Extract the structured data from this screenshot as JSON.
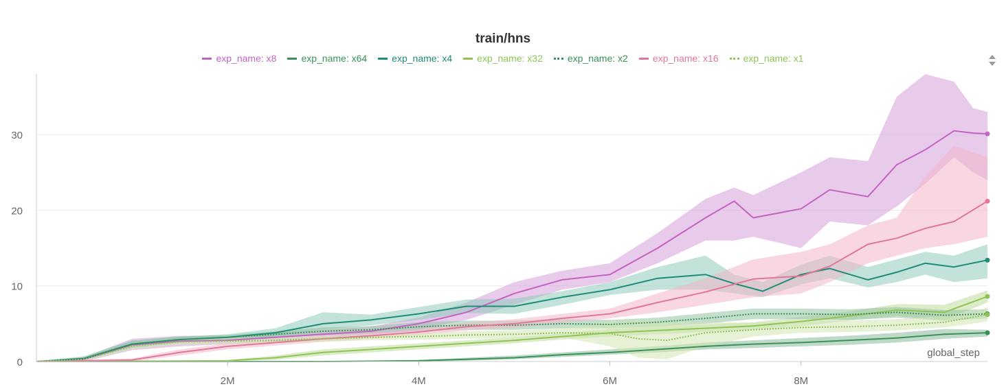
{
  "chart_data": {
    "type": "line",
    "title": "train/hns",
    "xlabel": "global_step",
    "ylabel": "",
    "xlim": [
      0,
      9950000
    ],
    "ylim": [
      0,
      38
    ],
    "x_ticks": [
      2000000,
      4000000,
      6000000,
      8000000
    ],
    "x_tick_labels": [
      "2M",
      "4M",
      "6M",
      "8M"
    ],
    "y_ticks": [
      0,
      10,
      20,
      30
    ],
    "y_tick_labels": [
      "0",
      "10",
      "20",
      "30"
    ],
    "grid": true,
    "legend_position": "top",
    "shaded_band": true,
    "series": [
      {
        "name": "exp_name: x8",
        "color": "#c462c4",
        "band_color": "#d59fd9",
        "dash": "solid",
        "x": [
          0,
          500000,
          1000000,
          1500000,
          2000000,
          2500000,
          3000000,
          3500000,
          4000000,
          4500000,
          5000000,
          5500000,
          6000000,
          6500000,
          7000000,
          7300000,
          7500000,
          8000000,
          8300000,
          8700000,
          9000000,
          9300000,
          9600000,
          9800000,
          9950000
        ],
        "y": [
          0,
          0.3,
          2.2,
          2.7,
          2.8,
          3.2,
          3.6,
          4.0,
          5.0,
          6.5,
          9.0,
          10.8,
          11.5,
          15.0,
          19.0,
          21.2,
          19.0,
          20.2,
          22.7,
          21.8,
          26.0,
          28.0,
          30.5,
          30.2,
          30.1
        ],
        "lower": [
          0,
          0,
          1.5,
          2.0,
          2.3,
          2.6,
          3.0,
          3.5,
          4.2,
          5.5,
          7.5,
          9.5,
          10.5,
          13.0,
          16.0,
          16.0,
          16.5,
          15.0,
          18.5,
          18.0,
          20.5,
          23.5,
          27.0,
          25.0,
          24.0
        ],
        "upper": [
          0,
          0.6,
          3.0,
          3.4,
          3.4,
          3.8,
          4.2,
          4.6,
          5.8,
          7.8,
          10.5,
          12.0,
          13.0,
          17.0,
          21.5,
          23.0,
          22.0,
          25.0,
          27.0,
          26.5,
          35.0,
          38.0,
          37.0,
          33.5,
          33.0
        ]
      },
      {
        "name": "exp_name: x64",
        "color": "#3a9157",
        "band_color": "#8ab99a",
        "dash": "solid",
        "x": [
          0,
          2000000,
          3000000,
          4000000,
          4500000,
          5000000,
          5500000,
          6000000,
          6500000,
          7000000,
          7500000,
          8000000,
          8500000,
          9000000,
          9500000,
          9950000
        ],
        "y": [
          0,
          0,
          0,
          0.1,
          0.3,
          0.5,
          0.9,
          1.2,
          1.6,
          2.0,
          2.3,
          2.5,
          2.8,
          3.1,
          3.6,
          3.8
        ],
        "lower": [
          0,
          0,
          0,
          0,
          0.1,
          0.3,
          0.6,
          0.9,
          1.2,
          1.6,
          1.8,
          2.0,
          2.2,
          2.5,
          3.0,
          3.3
        ],
        "upper": [
          0,
          0,
          0,
          0.2,
          0.5,
          0.8,
          1.2,
          1.6,
          2.0,
          2.5,
          2.8,
          3.1,
          3.4,
          3.8,
          4.3,
          4.2
        ]
      },
      {
        "name": "exp_name: x4",
        "color": "#1d8c77",
        "band_color": "#8fcabb",
        "dash": "solid",
        "x": [
          0,
          500000,
          1000000,
          1500000,
          2000000,
          2500000,
          3000000,
          3500000,
          4000000,
          4500000,
          5000000,
          5500000,
          6000000,
          6500000,
          7000000,
          7300000,
          7600000,
          8000000,
          8300000,
          8700000,
          9000000,
          9300000,
          9600000,
          9950000
        ],
        "y": [
          0,
          0.4,
          2.3,
          2.9,
          3.2,
          3.8,
          5.0,
          5.5,
          6.3,
          7.3,
          7.3,
          8.5,
          9.5,
          11.0,
          11.5,
          10.3,
          9.3,
          11.5,
          12.3,
          10.8,
          11.8,
          13.0,
          12.5,
          13.4
        ],
        "lower": [
          0,
          0.2,
          1.8,
          2.5,
          2.9,
          3.3,
          4.2,
          4.8,
          5.5,
          6.4,
          6.3,
          7.5,
          8.8,
          9.5,
          9.5,
          9.0,
          8.5,
          10.2,
          11.0,
          9.8,
          10.5,
          11.5,
          10.5,
          11.0
        ],
        "upper": [
          0,
          0.7,
          2.8,
          3.3,
          3.6,
          4.4,
          6.5,
          6.2,
          7.2,
          8.2,
          8.3,
          9.3,
          10.5,
          12.5,
          14.0,
          11.5,
          10.5,
          12.8,
          14.0,
          12.5,
          13.5,
          14.5,
          14.0,
          15.5
        ]
      },
      {
        "name": "exp_name: x32",
        "color": "#8fc454",
        "band_color": "#c0dc9c",
        "dash": "solid",
        "x": [
          0,
          2000000,
          2500000,
          3000000,
          3500000,
          4000000,
          4500000,
          5000000,
          5500000,
          6000000,
          6500000,
          7000000,
          7500000,
          8000000,
          8500000,
          9000000,
          9500000,
          9950000
        ],
        "y": [
          0,
          0.1,
          0.5,
          1.2,
          1.6,
          2.0,
          2.4,
          2.8,
          3.3,
          3.8,
          4.1,
          4.4,
          4.7,
          5.3,
          6.0,
          6.8,
          6.5,
          8.6
        ],
        "lower": [
          0,
          0,
          0.2,
          0.8,
          1.2,
          1.6,
          2.0,
          2.4,
          2.9,
          3.3,
          3.6,
          3.9,
          4.2,
          4.7,
          5.4,
          6.0,
          5.5,
          7.8
        ],
        "upper": [
          0,
          0.2,
          0.8,
          1.6,
          2.0,
          2.4,
          2.8,
          3.2,
          3.7,
          4.3,
          4.6,
          4.9,
          5.2,
          5.9,
          6.6,
          7.6,
          7.5,
          9.4
        ]
      },
      {
        "name": "exp_name: x2",
        "color": "#3a9157",
        "band_color": "#94c2a3",
        "dash": "dotted",
        "x": [
          0,
          500000,
          1000000,
          1500000,
          2000000,
          2500000,
          3000000,
          3500000,
          4000000,
          4500000,
          5000000,
          5500000,
          6000000,
          6500000,
          7000000,
          7500000,
          8000000,
          8500000,
          9000000,
          9500000,
          9950000
        ],
        "y": [
          0,
          0.4,
          2.3,
          2.9,
          3.2,
          3.6,
          4.0,
          4.2,
          4.6,
          4.8,
          4.8,
          5.0,
          4.9,
          5.2,
          5.7,
          6.3,
          6.3,
          6.2,
          6.5,
          6.1,
          6.3
        ],
        "lower": [
          0,
          0.2,
          1.9,
          2.5,
          2.9,
          3.2,
          3.5,
          3.7,
          4.0,
          4.2,
          4.2,
          4.4,
          4.4,
          4.6,
          5.0,
          5.6,
          5.6,
          5.5,
          5.8,
          5.4,
          5.7
        ],
        "upper": [
          0,
          0.6,
          2.7,
          3.3,
          3.5,
          4.0,
          4.5,
          4.7,
          5.2,
          5.4,
          5.4,
          5.6,
          5.5,
          5.8,
          6.4,
          7.0,
          7.0,
          6.9,
          7.2,
          6.8,
          6.9
        ]
      },
      {
        "name": "exp_name: x16",
        "color": "#e0779a",
        "band_color": "#f2b7c8",
        "dash": "solid",
        "x": [
          0,
          1000000,
          1500000,
          2000000,
          2500000,
          3000000,
          3500000,
          4000000,
          4500000,
          5000000,
          5500000,
          6000000,
          6500000,
          7000000,
          7500000,
          8000000,
          8300000,
          8700000,
          9000000,
          9300000,
          9600000,
          9950000
        ],
        "y": [
          0,
          0.2,
          1.2,
          2.0,
          2.5,
          3.0,
          3.4,
          3.9,
          4.6,
          5.0,
          5.7,
          6.3,
          7.8,
          9.2,
          10.9,
          11.3,
          12.6,
          15.5,
          16.3,
          17.6,
          18.5,
          21.2
        ],
        "lower": [
          0,
          0,
          0.8,
          1.6,
          2.1,
          2.6,
          3.0,
          3.5,
          4.1,
          4.5,
          5.1,
          5.7,
          6.5,
          7.5,
          8.5,
          9.0,
          10.5,
          13.0,
          14.0,
          15.0,
          15.5,
          16.5
        ],
        "upper": [
          0,
          0.4,
          1.6,
          2.4,
          2.9,
          3.4,
          3.8,
          4.3,
          5.1,
          5.6,
          6.3,
          7.0,
          9.0,
          11.0,
          13.5,
          14.5,
          15.5,
          18.0,
          19.0,
          24.5,
          28.5,
          27.0
        ]
      },
      {
        "name": "exp_name: x1",
        "color": "#8fc454",
        "band_color": "#d1e6b3",
        "dash": "dotted",
        "x": [
          0,
          500000,
          1000000,
          1500000,
          2000000,
          2500000,
          3000000,
          3500000,
          4000000,
          4500000,
          5000000,
          5500000,
          6000000,
          6300000,
          6600000,
          7000000,
          7500000,
          8000000,
          8500000,
          9000000,
          9500000,
          9950000
        ],
        "y": [
          0,
          0.3,
          2.0,
          2.6,
          2.7,
          2.8,
          3.0,
          3.2,
          3.3,
          3.5,
          3.6,
          3.8,
          3.7,
          3.0,
          2.8,
          3.8,
          4.2,
          4.5,
          4.6,
          4.8,
          5.2,
          6.2
        ],
        "lower": [
          0,
          0.1,
          1.6,
          2.2,
          2.3,
          2.4,
          2.6,
          2.8,
          2.9,
          3.0,
          3.1,
          3.2,
          2.0,
          0.5,
          0.3,
          2.0,
          3.3,
          3.8,
          3.9,
          4.1,
          4.5,
          5.3
        ],
        "upper": [
          0,
          0.5,
          2.4,
          3.0,
          3.1,
          3.2,
          3.4,
          3.6,
          3.7,
          4.0,
          4.1,
          4.4,
          5.2,
          5.4,
          5.2,
          5.2,
          5.1,
          5.3,
          5.4,
          5.6,
          6.0,
          7.1
        ]
      }
    ]
  }
}
